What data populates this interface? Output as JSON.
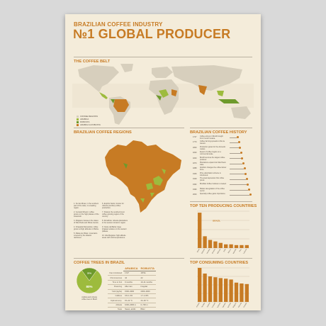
{
  "header": {
    "supertitle": "BRAZILIAN COFFEE INDUSTRY",
    "title": "№1 GLOBAL PRODUCER"
  },
  "coffee_belt": {
    "title": "THE COFFEE BELT",
    "legend": [
      "COFFEE REGIONS",
      "ARABICA",
      "ROBUSTA",
      "ARABICA & ROBUSTA"
    ],
    "legend_colors": [
      "#d7cfbd",
      "#9dbb3d",
      "#6e9a2c",
      "#c77b24"
    ]
  },
  "regions": {
    "title": "BRAZILIAN COFFEE REGIONS",
    "notes_left": [
      "1. Sul de Minas, in the southern part of the state, is a leading region.",
      "2. Cerrado Mineiro: coffee grows on the high plateau of the savannah.",
      "3. Mogiana: between the states of São Paulo and Minas Gerais.",
      "4. Chapada Diamantina: coffee grown at high altitudes in Bahia.",
      "5. Matas de Minas: mountains covered by the Atlantic rainforest."
    ],
    "notes_right": [
      "6. Espírito Santo: known for robusta (conilon) coffee production.",
      "7. Paraná: the southernmost coffee growing region of the country.",
      "8. Rondônia: robusta plantations in the western Amazon region.",
      "9. Oeste da Bahia: large irrigated estates on the western plateau.",
      "10. Alta Mogiana: high altitude areas with mild temperatures."
    ]
  },
  "history": {
    "title": "BRAZILIAN COFFEE HISTORY",
    "events": [
      {
        "year": "1727",
        "text": "Coffee arrives in Brazil brought from French Guiana."
      },
      {
        "year": "1770",
        "text": "Coffee farming spreads to Rio de Janeiro."
      },
      {
        "year": "1800",
        "text": "Production grows for the domestic market."
      },
      {
        "year": "1820",
        "text": "Export of coffee begins on a commercial scale."
      },
      {
        "year": "1840",
        "text": "Brazil becomes the largest coffee producer."
      },
      {
        "year": "1870",
        "text": "Plantations expand into São Paulo state."
      },
      {
        "year": "1888",
        "text": "Abolition changes the coffee labour force."
      },
      {
        "year": "1906",
        "text": "Price valorization scheme is introduced."
      },
      {
        "year": "1929",
        "text": "The great depression hits coffee prices."
      },
      {
        "year": "1952",
        "text": "Brazilian Coffee Institute is created."
      },
      {
        "year": "1990",
        "text": "Market deregulation of the coffee sector."
      },
      {
        "year": "2000",
        "text": "Specialty coffee gains importance."
      }
    ]
  },
  "top_producing": {
    "title": "TOP TEN PRODUCING COUNTRIES",
    "chart_data": {
      "type": "bar",
      "categories": [
        "Brazil",
        "Vietnam",
        "Colombia",
        "Indonesia",
        "Ethiopia",
        "India",
        "Mexico",
        "Guatemala",
        "Peru",
        "Honduras"
      ],
      "values": [
        48,
        16,
        11,
        9,
        7,
        5,
        5,
        4,
        4,
        4
      ],
      "ylim": [
        0,
        50
      ],
      "highlight_label": "BRAZIL"
    }
  },
  "coffee_trees": {
    "title": "COFFEE TREES IN BRAZIL",
    "chart_data": {
      "type": "pie",
      "categories": [
        "Arabica",
        "Robusta"
      ],
      "values": [
        80,
        20
      ]
    },
    "pie_labels": [
      "80%",
      "20%"
    ],
    "pie_caption": [
      "Arabica and robusta",
      "coffee trees in Brazil"
    ],
    "table": {
      "headers": [
        "ARABICA",
        "ROBUSTA"
      ],
      "rows": [
        {
          "label": "Year introduced",
          "a": "1727",
          "r": "1870s"
        },
        {
          "label": "Chromosomes",
          "a": "44",
          "r": "22"
        },
        {
          "label": "Time to fruit",
          "a": "9 months",
          "r": "10–11 months"
        },
        {
          "label": "Flowering",
          "a": "After rain",
          "r": "Irregular"
        },
        {
          "label": "Yield (kg/ha)",
          "a": "1500–3000",
          "r": "2300–4000"
        },
        {
          "label": "Caffeine",
          "a": "0.8–1.4%",
          "r": "1.7–4.0%"
        },
        {
          "label": "Optimal temp.",
          "a": "15–24 °C",
          "r": "24–30 °C"
        },
        {
          "label": "Altitude",
          "a": "1000–2000 m",
          "r": "0–700 m"
        },
        {
          "label": "Taste",
          "a": "Sweet, acidic",
          "r": "Bitter"
        }
      ]
    }
  },
  "top_consuming": {
    "title": "TOP CONSUMING COUNTRIES",
    "chart_data": {
      "type": "bar",
      "categories": [
        "Finland",
        "Norway",
        "Iceland",
        "Denmark",
        "Netherlands",
        "Sweden",
        "Switzerland",
        "Belgium",
        "Luxembourg",
        "Canada"
      ],
      "values": [
        12,
        10,
        9,
        8.7,
        8.4,
        8.2,
        7.9,
        6.8,
        6.5,
        6.3
      ],
      "ylim": [
        0,
        12
      ]
    }
  }
}
